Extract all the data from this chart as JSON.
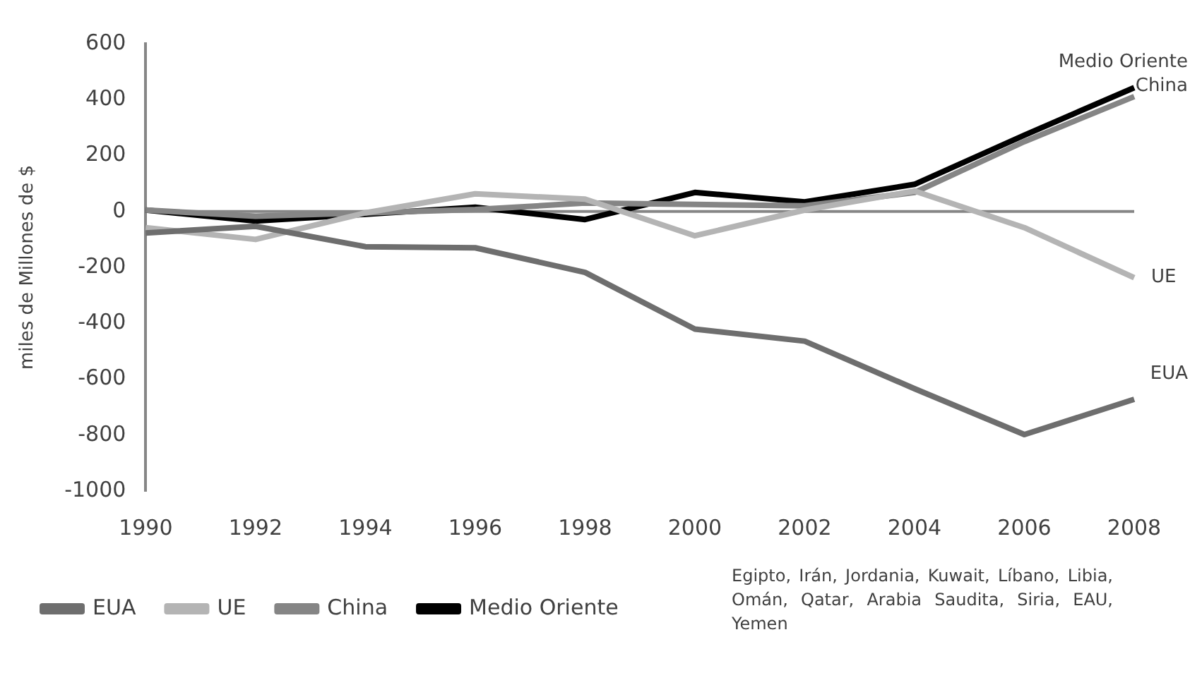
{
  "chart_data": {
    "type": "line",
    "ylabel": "miles de Millones de $",
    "categories": [
      "1990",
      "1992",
      "1994",
      "1996",
      "1998",
      "2000",
      "2002",
      "2004",
      "2006",
      "2008"
    ],
    "series": [
      {
        "name": "EUA",
        "color": "#6e6e6e",
        "values": [
          -77,
          -53,
          -126,
          -130,
          -218,
          -421,
          -464,
          -634,
          -798,
          -672
        ]
      },
      {
        "name": "UE",
        "color": "#b4b4b4",
        "values": [
          -58,
          -100,
          -5,
          63,
          44,
          -87,
          5,
          73,
          -58,
          -237
        ]
      },
      {
        "name": "China",
        "color": "#858585",
        "values": [
          5,
          -17,
          -5,
          7,
          30,
          25,
          20,
          68,
          250,
          411
        ]
      },
      {
        "name": "Medio Oriente",
        "color": "#000000",
        "values": [
          5,
          -34,
          -10,
          15,
          -29,
          68,
          34,
          97,
          273,
          443
        ]
      }
    ],
    "ylim": [
      -1000,
      600
    ],
    "yticks": [
      -1000,
      -800,
      -600,
      -400,
      -200,
      0,
      200,
      400,
      600
    ],
    "ref_lines": [
      {
        "axis": "y",
        "value": 0,
        "color": "#868686"
      }
    ],
    "grid": false,
    "legend": "bottom",
    "marker": "none",
    "line_style": "solid",
    "annotations": [
      "Egipto, Irán, Jordania, Kuwait, Líbano, Libia, Omán, Qatar, Arabia Saudita, Siria, EAU, Yemen"
    ]
  }
}
